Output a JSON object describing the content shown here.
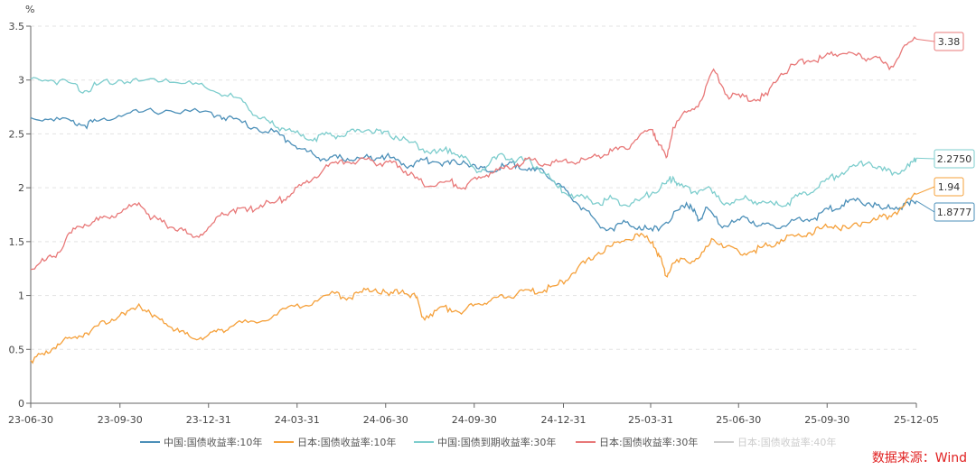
{
  "source_text": "数据来源：Wind",
  "chart_data": {
    "type": "line",
    "y_unit": "%",
    "ylim": [
      0,
      3.5
    ],
    "y_ticks": [
      "0",
      "0.5",
      "1",
      "1.5",
      "2",
      "2.5",
      "3",
      "3.5"
    ],
    "x_ticks": [
      "23-06-30",
      "23-09-30",
      "23-12-31",
      "24-03-31",
      "24-06-30",
      "24-09-30",
      "24-12-31",
      "25-03-31",
      "25-06-30",
      "25-09-30",
      "25-12-05"
    ],
    "grid": "horizontal dashed",
    "legend_position": "bottom",
    "series": [
      {
        "name": "中国:国债收益率:10年",
        "color": "#4b8fb8",
        "end_label": "1.8777",
        "values": [
          [
            0,
            2.65
          ],
          [
            3,
            2.64
          ],
          [
            6,
            2.62
          ],
          [
            8,
            2.58
          ],
          [
            10,
            2.62
          ],
          [
            13,
            2.67
          ],
          [
            16,
            2.7
          ],
          [
            20,
            2.72
          ],
          [
            25,
            2.7
          ],
          [
            28,
            2.67
          ],
          [
            30,
            2.64
          ],
          [
            33,
            2.56
          ],
          [
            36,
            2.52
          ],
          [
            38,
            2.44
          ],
          [
            40,
            2.36
          ],
          [
            42,
            2.3
          ],
          [
            44,
            2.26
          ],
          [
            46,
            2.28
          ],
          [
            48,
            2.26
          ],
          [
            50,
            2.28
          ],
          [
            52,
            2.3
          ],
          [
            54,
            2.26
          ],
          [
            56,
            2.2
          ],
          [
            58,
            2.26
          ],
          [
            60,
            2.24
          ],
          [
            62,
            2.22
          ],
          [
            64,
            2.25
          ],
          [
            66,
            2.18
          ],
          [
            68,
            2.15
          ],
          [
            70,
            2.2
          ],
          [
            72,
            2.22
          ],
          [
            74,
            2.16
          ],
          [
            76,
            2.14
          ],
          [
            78,
            2.04
          ],
          [
            80,
            1.9
          ],
          [
            82,
            1.8
          ],
          [
            84,
            1.66
          ],
          [
            86,
            1.62
          ],
          [
            88,
            1.68
          ],
          [
            90,
            1.64
          ],
          [
            92,
            1.6
          ],
          [
            94,
            1.68
          ],
          [
            96,
            1.8
          ],
          [
            97,
            1.86
          ],
          [
            98,
            1.78
          ],
          [
            99,
            1.7
          ],
          [
            100,
            1.82
          ],
          [
            102,
            1.65
          ],
          [
            104,
            1.68
          ],
          [
            106,
            1.72
          ],
          [
            108,
            1.65
          ],
          [
            110,
            1.64
          ],
          [
            112,
            1.66
          ],
          [
            114,
            1.7
          ],
          [
            116,
            1.72
          ],
          [
            118,
            1.8
          ],
          [
            120,
            1.84
          ],
          [
            122,
            1.88
          ],
          [
            124,
            1.86
          ],
          [
            126,
            1.8
          ],
          [
            128,
            1.82
          ],
          [
            130,
            1.84
          ],
          [
            131,
            1.8777
          ]
        ]
      },
      {
        "name": "日本:国债收益率:10年",
        "color": "#f5a03a",
        "end_label": "1.94",
        "values": [
          [
            0,
            0.4
          ],
          [
            2,
            0.45
          ],
          [
            4,
            0.55
          ],
          [
            6,
            0.6
          ],
          [
            8,
            0.65
          ],
          [
            10,
            0.72
          ],
          [
            12,
            0.78
          ],
          [
            14,
            0.82
          ],
          [
            16,
            0.92
          ],
          [
            18,
            0.8
          ],
          [
            20,
            0.74
          ],
          [
            22,
            0.66
          ],
          [
            24,
            0.6
          ],
          [
            26,
            0.62
          ],
          [
            28,
            0.68
          ],
          [
            30,
            0.72
          ],
          [
            33,
            0.76
          ],
          [
            36,
            0.82
          ],
          [
            39,
            0.9
          ],
          [
            42,
            0.95
          ],
          [
            45,
            1.02
          ],
          [
            47,
            0.98
          ],
          [
            49,
            1.03
          ],
          [
            51,
            1.06
          ],
          [
            53,
            1.0
          ],
          [
            55,
            1.05
          ],
          [
            57,
            0.98
          ],
          [
            58,
            0.8
          ],
          [
            60,
            0.86
          ],
          [
            62,
            0.88
          ],
          [
            64,
            0.85
          ],
          [
            66,
            0.92
          ],
          [
            68,
            0.95
          ],
          [
            70,
            0.98
          ],
          [
            72,
            1.02
          ],
          [
            74,
            1.04
          ],
          [
            76,
            1.05
          ],
          [
            78,
            1.1
          ],
          [
            80,
            1.2
          ],
          [
            82,
            1.3
          ],
          [
            84,
            1.4
          ],
          [
            86,
            1.46
          ],
          [
            88,
            1.52
          ],
          [
            90,
            1.55
          ],
          [
            92,
            1.5
          ],
          [
            93,
            1.36
          ],
          [
            94,
            1.18
          ],
          [
            95,
            1.3
          ],
          [
            97,
            1.32
          ],
          [
            99,
            1.36
          ],
          [
            101,
            1.52
          ],
          [
            103,
            1.46
          ],
          [
            105,
            1.38
          ],
          [
            107,
            1.42
          ],
          [
            109,
            1.46
          ],
          [
            111,
            1.52
          ],
          [
            113,
            1.55
          ],
          [
            115,
            1.58
          ],
          [
            117,
            1.62
          ],
          [
            119,
            1.65
          ],
          [
            121,
            1.62
          ],
          [
            123,
            1.68
          ],
          [
            125,
            1.7
          ],
          [
            127,
            1.74
          ],
          [
            129,
            1.82
          ],
          [
            131,
            1.94
          ]
        ]
      },
      {
        "name": "中国:国债到期收益率:30年",
        "color": "#7dcdcd",
        "end_label": "2.2750",
        "values": [
          [
            0,
            3.01
          ],
          [
            3,
            3.0
          ],
          [
            6,
            2.97
          ],
          [
            8,
            2.9
          ],
          [
            10,
            2.96
          ],
          [
            13,
            3.0
          ],
          [
            16,
            2.99
          ],
          [
            20,
            3.01
          ],
          [
            24,
            2.96
          ],
          [
            27,
            2.9
          ],
          [
            30,
            2.84
          ],
          [
            32,
            2.76
          ],
          [
            34,
            2.64
          ],
          [
            36,
            2.58
          ],
          [
            38,
            2.54
          ],
          [
            40,
            2.48
          ],
          [
            42,
            2.46
          ],
          [
            44,
            2.5
          ],
          [
            46,
            2.48
          ],
          [
            48,
            2.52
          ],
          [
            50,
            2.54
          ],
          [
            52,
            2.5
          ],
          [
            54,
            2.48
          ],
          [
            56,
            2.42
          ],
          [
            58,
            2.36
          ],
          [
            60,
            2.32
          ],
          [
            62,
            2.36
          ],
          [
            64,
            2.28
          ],
          [
            66,
            2.14
          ],
          [
            68,
            2.24
          ],
          [
            70,
            2.3
          ],
          [
            72,
            2.26
          ],
          [
            74,
            2.24
          ],
          [
            76,
            2.14
          ],
          [
            78,
            2.0
          ],
          [
            80,
            1.94
          ],
          [
            82,
            1.9
          ],
          [
            84,
            1.86
          ],
          [
            86,
            1.9
          ],
          [
            88,
            1.84
          ],
          [
            90,
            1.88
          ],
          [
            92,
            1.96
          ],
          [
            94,
            2.04
          ],
          [
            95,
            2.1
          ],
          [
            96,
            2.02
          ],
          [
            98,
            1.96
          ],
          [
            100,
            2.0
          ],
          [
            102,
            1.88
          ],
          [
            104,
            1.86
          ],
          [
            106,
            1.9
          ],
          [
            108,
            1.86
          ],
          [
            110,
            1.84
          ],
          [
            112,
            1.86
          ],
          [
            114,
            1.94
          ],
          [
            116,
            1.98
          ],
          [
            118,
            2.08
          ],
          [
            120,
            2.14
          ],
          [
            122,
            2.2
          ],
          [
            124,
            2.24
          ],
          [
            126,
            2.16
          ],
          [
            128,
            2.14
          ],
          [
            130,
            2.2
          ],
          [
            131,
            2.275
          ]
        ]
      },
      {
        "name": "日本:国债收益率:30年",
        "color": "#e87878",
        "end_label": "3.38",
        "values": [
          [
            0,
            1.24
          ],
          [
            2,
            1.32
          ],
          [
            4,
            1.4
          ],
          [
            6,
            1.58
          ],
          [
            8,
            1.66
          ],
          [
            10,
            1.7
          ],
          [
            12,
            1.74
          ],
          [
            14,
            1.8
          ],
          [
            16,
            1.86
          ],
          [
            18,
            1.72
          ],
          [
            20,
            1.66
          ],
          [
            22,
            1.62
          ],
          [
            24,
            1.54
          ],
          [
            26,
            1.6
          ],
          [
            28,
            1.74
          ],
          [
            30,
            1.8
          ],
          [
            32,
            1.78
          ],
          [
            34,
            1.84
          ],
          [
            36,
            1.86
          ],
          [
            38,
            1.92
          ],
          [
            40,
            2.02
          ],
          [
            42,
            2.1
          ],
          [
            44,
            2.2
          ],
          [
            46,
            2.26
          ],
          [
            48,
            2.22
          ],
          [
            50,
            2.28
          ],
          [
            52,
            2.2
          ],
          [
            54,
            2.24
          ],
          [
            56,
            2.12
          ],
          [
            58,
            2.04
          ],
          [
            60,
            2.02
          ],
          [
            62,
            2.06
          ],
          [
            64,
            2.0
          ],
          [
            66,
            2.08
          ],
          [
            68,
            2.14
          ],
          [
            70,
            2.18
          ],
          [
            72,
            2.22
          ],
          [
            74,
            2.26
          ],
          [
            76,
            2.22
          ],
          [
            78,
            2.24
          ],
          [
            80,
            2.24
          ],
          [
            82,
            2.26
          ],
          [
            84,
            2.3
          ],
          [
            86,
            2.34
          ],
          [
            88,
            2.36
          ],
          [
            90,
            2.48
          ],
          [
            92,
            2.54
          ],
          [
            93,
            2.4
          ],
          [
            94,
            2.28
          ],
          [
            95,
            2.56
          ],
          [
            97,
            2.7
          ],
          [
            99,
            2.8
          ],
          [
            101,
            3.1
          ],
          [
            103,
            2.86
          ],
          [
            105,
            2.84
          ],
          [
            107,
            2.82
          ],
          [
            109,
            2.86
          ],
          [
            111,
            3.06
          ],
          [
            113,
            3.14
          ],
          [
            115,
            3.18
          ],
          [
            117,
            3.2
          ],
          [
            119,
            3.24
          ],
          [
            121,
            3.26
          ],
          [
            123,
            3.2
          ],
          [
            125,
            3.22
          ],
          [
            127,
            3.1
          ],
          [
            129,
            3.3
          ],
          [
            131,
            3.38
          ]
        ]
      },
      {
        "name": "日本:国债收益率:40年",
        "color": "#cccccc",
        "hidden": true,
        "values": []
      }
    ]
  }
}
